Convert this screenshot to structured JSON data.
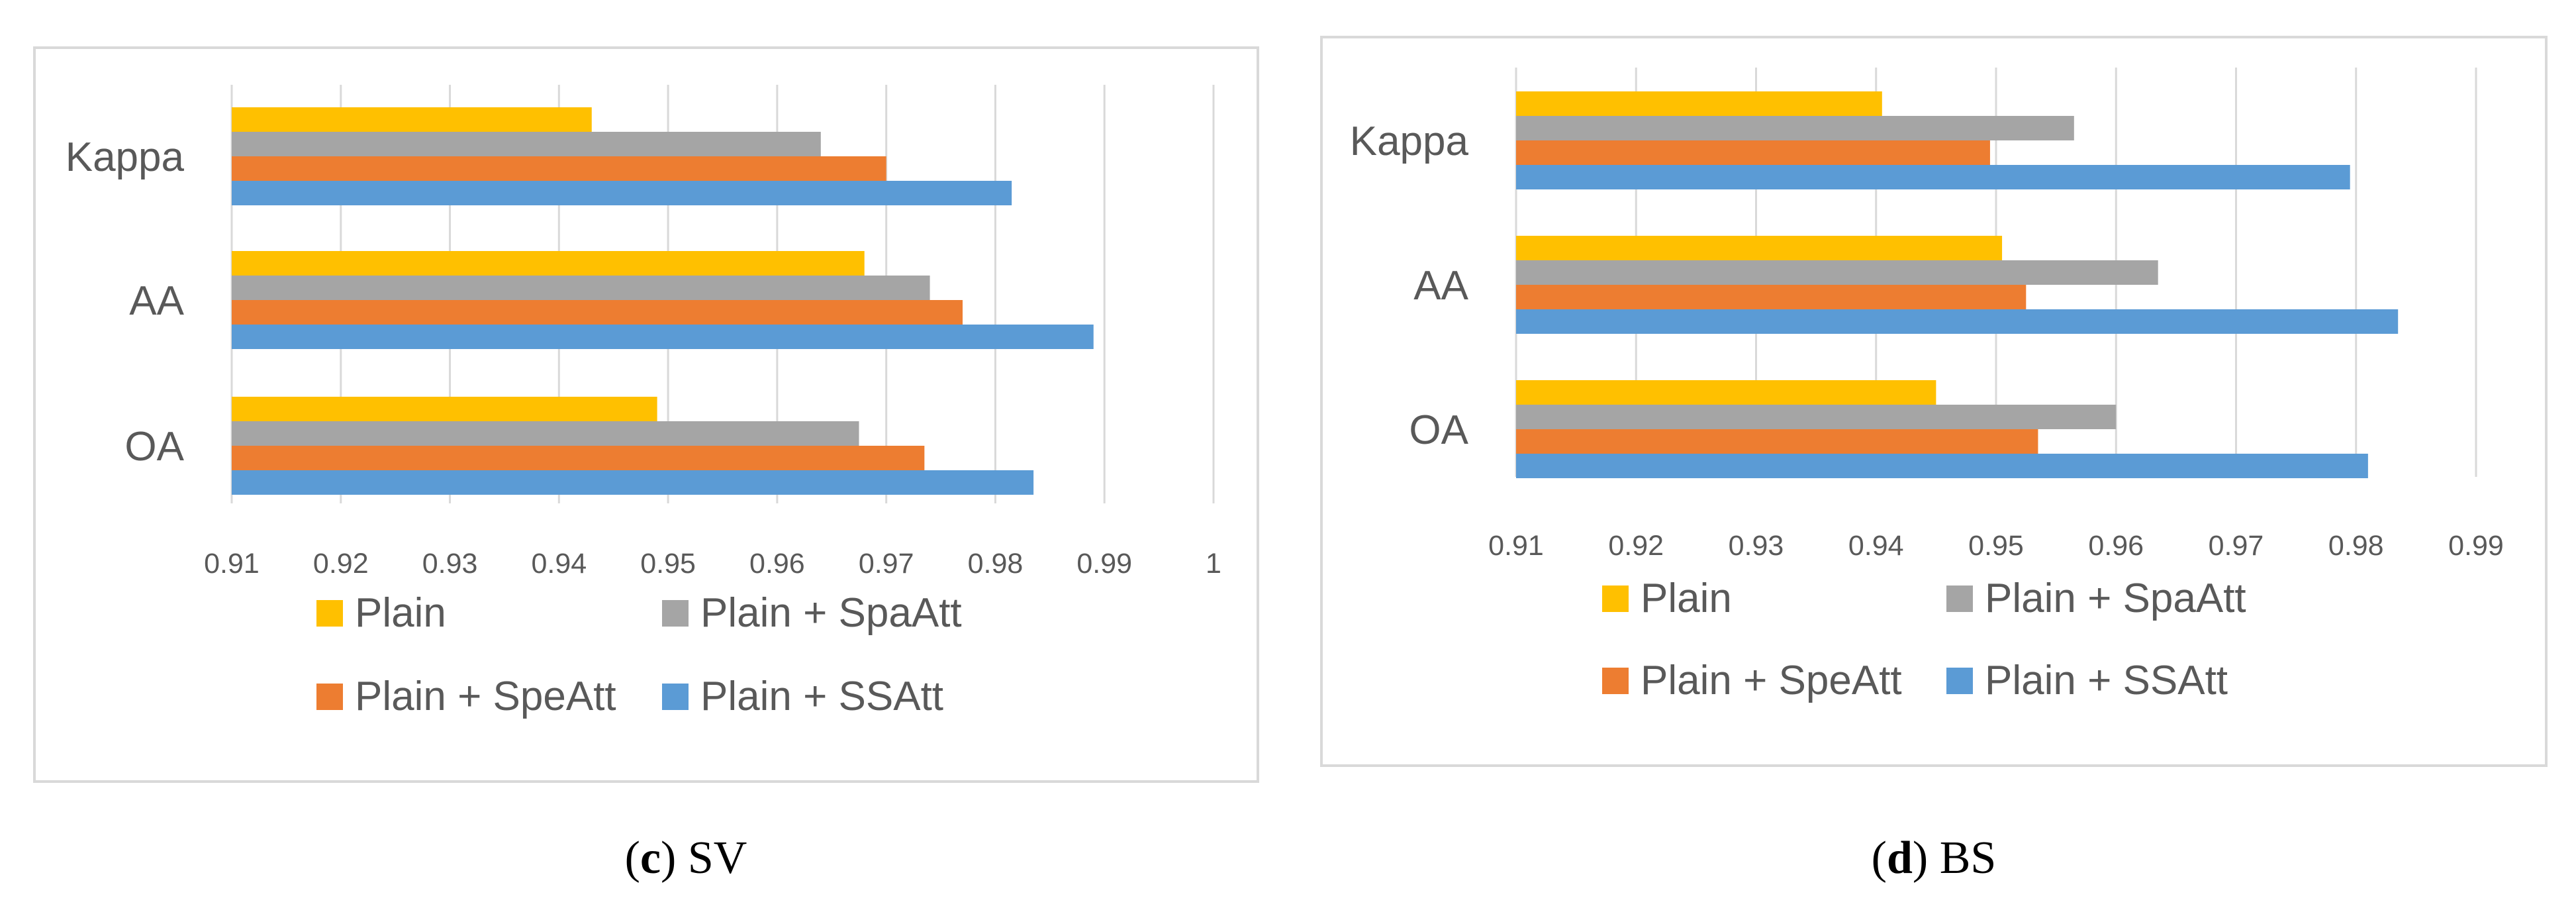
{
  "colors": {
    "Plain": "#ffc000",
    "Plain + SpaAtt": "#a5a5a5",
    "Plain + SpeAtt": "#ed7d31",
    "Plain + SSAtt": "#5b9bd5",
    "grid": "#d9d9d9",
    "frame": "#d9d9d9"
  },
  "chart_data": [
    {
      "type": "bar",
      "orientation": "horizontal",
      "caption_letter": "c",
      "caption_text": "SV",
      "categories": [
        "OA",
        "AA",
        "Kappa"
      ],
      "xlim": [
        0.91,
        1.0
      ],
      "xticks": [
        "0.91",
        "0.92",
        "0.93",
        "0.94",
        "0.95",
        "0.96",
        "0.97",
        "0.98",
        "0.99",
        "1"
      ],
      "grid": true,
      "legend_position": "bottom",
      "series": [
        {
          "name": "Plain",
          "values": [
            0.949,
            0.968,
            0.943
          ]
        },
        {
          "name": "Plain + SpaAtt",
          "values": [
            0.9675,
            0.974,
            0.964
          ]
        },
        {
          "name": "Plain + SpeAtt",
          "values": [
            0.9735,
            0.977,
            0.97
          ]
        },
        {
          "name": "Plain + SSAtt",
          "values": [
            0.9835,
            0.989,
            0.9815
          ]
        }
      ]
    },
    {
      "type": "bar",
      "orientation": "horizontal",
      "caption_letter": "d",
      "caption_text": "BS",
      "categories": [
        "OA",
        "AA",
        "Kappa"
      ],
      "xlim": [
        0.91,
        0.99
      ],
      "xticks": [
        "0.91",
        "0.92",
        "0.93",
        "0.94",
        "0.95",
        "0.96",
        "0.97",
        "0.98",
        "0.99"
      ],
      "grid": true,
      "legend_position": "bottom",
      "series": [
        {
          "name": "Plain",
          "values": [
            0.945,
            0.9505,
            0.9405
          ]
        },
        {
          "name": "Plain + SpaAtt",
          "values": [
            0.96,
            0.9635,
            0.9565
          ]
        },
        {
          "name": "Plain + SpeAtt",
          "values": [
            0.9535,
            0.9525,
            0.9495
          ]
        },
        {
          "name": "Plain + SSAtt",
          "values": [
            0.981,
            0.9835,
            0.9795
          ]
        }
      ]
    }
  ]
}
